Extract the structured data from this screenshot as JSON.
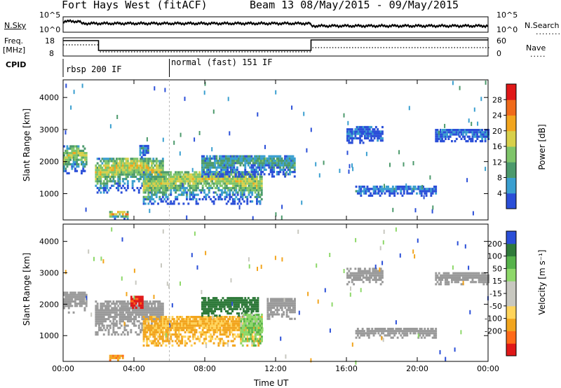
{
  "header": {
    "radar_title": "Fort Hays West (fitACF)",
    "beam_info": "Beam 13 08/May/2015 - 09/May/2015"
  },
  "noise_panel": {
    "left_label": "N.Sky",
    "right_label": "N.Search",
    "left_ticks": [
      "10^5",
      "10^0"
    ],
    "right_ticks": [
      "10^5",
      "10^0"
    ]
  },
  "freq_panel": {
    "left_label_1": "Freq.",
    "left_label_2": "[MHz]",
    "right_label": "Nave",
    "left_ticks": [
      "18",
      "8"
    ],
    "right_ticks": [
      "60",
      "0"
    ]
  },
  "cpid": {
    "label": "CPID",
    "modes": [
      {
        "name": "rbsp 200 IF",
        "start_hour": 0
      },
      {
        "name": "normal (fast) 151 IF",
        "start_hour": 6
      }
    ]
  },
  "colors": {
    "power_scale": [
      "#2b4fd8",
      "#3a9fd0",
      "#4c9a6c",
      "#7fc56a",
      "#d8d04a",
      "#f2a51e",
      "#f06a1a",
      "#e01818"
    ],
    "velocity_scale": [
      "#e01818",
      "#ff6a18",
      "#f2a51e",
      "#ffd45a",
      "#c8c8c0",
      "#c8c8c0",
      "#8ed86a",
      "#56b24a",
      "#2f7a3a",
      "#2b4fd8"
    ],
    "ground_scatter": "#9a9a9a"
  },
  "chart_data": [
    {
      "type": "heatmap",
      "name": "power",
      "ylabel": "Slant Range [km]",
      "xlabel": "",
      "ylim": [
        180,
        4550
      ],
      "x_ticks": [],
      "y_ticks": [
        1000,
        2000,
        3000,
        4000
      ],
      "colorbar": {
        "label": "Power [dB]",
        "ticks": [
          4,
          8,
          12,
          16,
          20,
          24,
          28
        ],
        "range": [
          0,
          32
        ]
      },
      "regions": [
        {
          "t_start": 0.0,
          "t_end": 1.3,
          "range_low": 1600,
          "range_high": 2450,
          "intensity": 0.55
        },
        {
          "t_start": 1.8,
          "t_end": 5.6,
          "range_low": 1000,
          "range_high": 2100,
          "intensity": 0.6
        },
        {
          "t_start": 4.3,
          "t_end": 4.8,
          "range_low": 2100,
          "range_high": 2500,
          "intensity": 0.2
        },
        {
          "t_start": 2.6,
          "t_end": 3.6,
          "range_low": 180,
          "range_high": 420,
          "intensity": 0.75
        },
        {
          "t_start": 4.5,
          "t_end": 11.2,
          "range_low": 650,
          "range_high": 1700,
          "intensity": 0.55
        },
        {
          "t_start": 7.8,
          "t_end": 13.1,
          "range_low": 1500,
          "range_high": 2200,
          "intensity": 0.3
        },
        {
          "t_start": 16.5,
          "t_end": 21.0,
          "range_low": 900,
          "range_high": 1200,
          "intensity": 0.15
        },
        {
          "t_start": 16.0,
          "t_end": 18.0,
          "range_low": 2550,
          "range_high": 3050,
          "intensity": 0.1
        },
        {
          "t_start": 21.0,
          "t_end": 24.0,
          "range_low": 2600,
          "range_high": 3000,
          "intensity": 0.12
        }
      ]
    },
    {
      "type": "heatmap",
      "name": "velocity",
      "ylabel": "Slant Range [km]",
      "xlabel": "Time UT",
      "ylim": [
        180,
        4550
      ],
      "x_ticks": [
        "00:00",
        "04:00",
        "08:00",
        "12:00",
        "16:00",
        "20:00",
        "00:00"
      ],
      "y_ticks": [
        1000,
        2000,
        3000,
        4000
      ],
      "colorbar": {
        "label": "Velocity [m s⁻¹]",
        "ticks": [
          200,
          100,
          50,
          15,
          -15,
          -50,
          -100,
          -200
        ]
      },
      "regions": [
        {
          "t_start": 0.0,
          "t_end": 1.3,
          "range_low": 1700,
          "range_high": 2400,
          "kind": "ground"
        },
        {
          "t_start": 1.8,
          "t_end": 5.6,
          "range_low": 1000,
          "range_high": 2100,
          "kind": "ground"
        },
        {
          "t_start": 3.8,
          "t_end": 4.5,
          "range_low": 1850,
          "range_high": 2250,
          "velocity": -220
        },
        {
          "t_start": 2.6,
          "t_end": 3.4,
          "range_low": 180,
          "range_high": 350,
          "velocity": -80
        },
        {
          "t_start": 4.5,
          "t_end": 11.2,
          "range_low": 650,
          "range_high": 1600,
          "velocity": -60
        },
        {
          "t_start": 7.8,
          "t_end": 11.0,
          "range_low": 1600,
          "range_high": 2200,
          "velocity": 150
        },
        {
          "t_start": 10.0,
          "t_end": 11.2,
          "range_low": 650,
          "range_high": 1700,
          "velocity": 40
        },
        {
          "t_start": 11.5,
          "t_end": 13.1,
          "range_low": 1500,
          "range_high": 2200,
          "kind": "ground"
        },
        {
          "t_start": 16.5,
          "t_end": 21.0,
          "range_low": 900,
          "range_high": 1200,
          "kind": "ground"
        },
        {
          "t_start": 16.0,
          "t_end": 18.0,
          "range_low": 2600,
          "range_high": 3100,
          "kind": "ground"
        },
        {
          "t_start": 21.0,
          "t_end": 24.0,
          "range_low": 2600,
          "range_high": 3000,
          "kind": "ground"
        }
      ]
    }
  ]
}
